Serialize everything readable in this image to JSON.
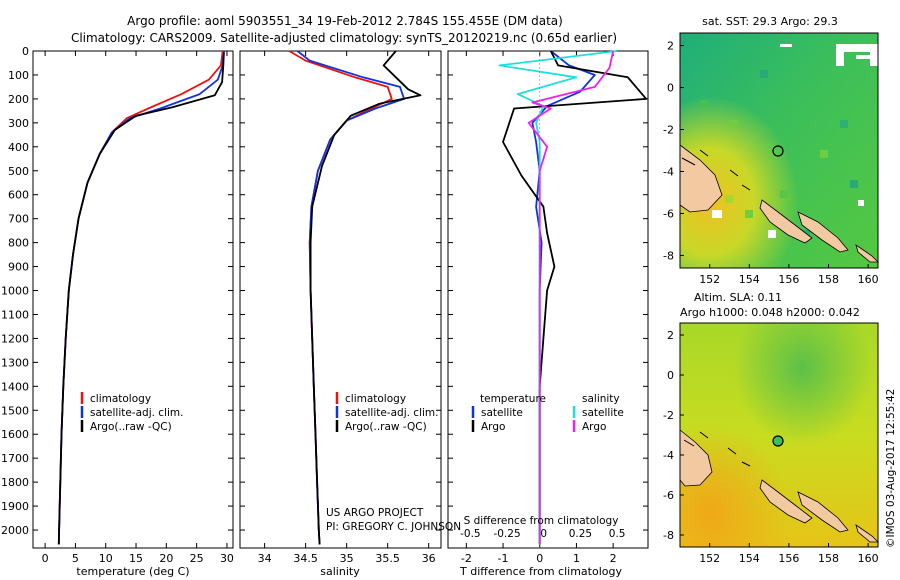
{
  "header": {
    "title_line1": "Argo profile: aoml 5903551_34 19-Feb-2012 2.784S 155.455E (DM data)",
    "title_line2": "Climatology: CARS2009. Satellite-adjusted climatology: synTS_20120219.nc (0.65d earlier)"
  },
  "credits": {
    "project": "US ARGO PROJECT",
    "pi": "PI: GREGORY C. JOHNSON",
    "stamp": "©IMOS 03-Aug-2017 12:55:42"
  },
  "colors": {
    "climatology": "#ee1111",
    "satellite": "#1133dd",
    "argo": "#000000",
    "salinity_satellite": "#22dddd",
    "salinity_argo": "#ee22ee"
  },
  "chart_data": [
    {
      "type": "line",
      "xlabel": "temperature (deg C)",
      "ylabel": "",
      "xlim": [
        -2,
        31
      ],
      "ylim": [
        2075,
        0
      ],
      "xticks": [
        "0",
        "5",
        "10",
        "15",
        "20",
        "25",
        "30"
      ],
      "xtick_values": [
        0,
        5,
        10,
        15,
        20,
        25,
        30
      ],
      "yticks": [
        "0",
        "100",
        "200",
        "300",
        "400",
        "500",
        "600",
        "700",
        "800",
        "900",
        "1000",
        "1100",
        "1200",
        "1300",
        "1400",
        "1500",
        "1600",
        "1700",
        "1800",
        "1900",
        "2000"
      ],
      "ytick_values": [
        0,
        100,
        200,
        300,
        400,
        500,
        600,
        700,
        800,
        900,
        1000,
        1100,
        1200,
        1300,
        1400,
        1500,
        1600,
        1700,
        1800,
        1900,
        2000
      ],
      "legend": [
        "climatology",
        "satellite-adj. clim.",
        "Argo(..raw -QC)"
      ],
      "legend_position": "lower-center",
      "series": [
        {
          "name": "climatology",
          "color_key": "climatology",
          "x": [
            29.3,
            29.0,
            27.0,
            22.5,
            17.0,
            13.5,
            11.0,
            9.0,
            7.0,
            5.5,
            4.6,
            3.9,
            3.4,
            3.0,
            2.7,
            2.5,
            2.3,
            2.25
          ],
          "y": [
            0,
            60,
            120,
            180,
            240,
            280,
            340,
            430,
            550,
            700,
            850,
            1000,
            1200,
            1400,
            1600,
            1800,
            2000,
            2060
          ]
        },
        {
          "name": "satellite-adj. clim.",
          "color_key": "satellite",
          "x": [
            29.5,
            29.3,
            28.5,
            25.5,
            19.0,
            14.0,
            11.0,
            9.0,
            7.0,
            5.5,
            4.6,
            3.9,
            3.4,
            3.0,
            2.7,
            2.5,
            2.3,
            2.25
          ],
          "y": [
            0,
            60,
            120,
            180,
            240,
            280,
            340,
            430,
            550,
            700,
            850,
            1000,
            1200,
            1400,
            1600,
            1800,
            2000,
            2060
          ]
        },
        {
          "name": "Argo(..raw -QC)",
          "color_key": "argo",
          "x": [
            29.5,
            29.4,
            29.2,
            28.0,
            21.0,
            15.0,
            11.5,
            9.0,
            7.0,
            5.5,
            4.6,
            3.9,
            3.4,
            3.0,
            2.7,
            2.5,
            2.3,
            2.25
          ],
          "y": [
            5,
            60,
            130,
            185,
            235,
            270,
            330,
            430,
            550,
            700,
            850,
            1000,
            1200,
            1400,
            1600,
            1800,
            2000,
            2060
          ]
        }
      ]
    },
    {
      "type": "line",
      "xlabel": "salinity",
      "xlim": [
        33.7,
        36.15
      ],
      "ylim": [
        2075,
        0
      ],
      "xticks": [
        "34",
        "34.5",
        "35",
        "35.5",
        "36"
      ],
      "xtick_values": [
        34,
        34.5,
        35,
        35.5,
        36
      ],
      "legend": [
        "climatology",
        "satellite-adj. clim.",
        "Argo(..raw -QC)"
      ],
      "legend_position": "lower-right",
      "series": [
        {
          "name": "climatology",
          "color_key": "climatology",
          "x": [
            34.3,
            34.5,
            35.1,
            35.5,
            35.55,
            35.3,
            35.0,
            34.8,
            34.65,
            34.57,
            34.55,
            34.56,
            34.58,
            34.6,
            34.62,
            34.64,
            34.66,
            34.67
          ],
          "y": [
            0,
            40,
            110,
            150,
            200,
            240,
            290,
            370,
            500,
            650,
            800,
            1000,
            1200,
            1400,
            1600,
            1800,
            2000,
            2060
          ]
        },
        {
          "name": "satellite-adj. clim.",
          "color_key": "satellite",
          "x": [
            34.4,
            34.55,
            35.2,
            35.65,
            35.7,
            35.35,
            35.0,
            34.8,
            34.65,
            34.57,
            34.55,
            34.56,
            34.58,
            34.6,
            34.62,
            34.64,
            34.66,
            34.67
          ],
          "y": [
            0,
            40,
            110,
            150,
            200,
            240,
            290,
            370,
            500,
            650,
            800,
            1000,
            1200,
            1400,
            1600,
            1800,
            2000,
            2060
          ]
        },
        {
          "name": "Argo(..raw -QC)",
          "color_key": "argo",
          "x": [
            35.6,
            35.45,
            35.6,
            35.75,
            35.9,
            35.4,
            35.05,
            34.85,
            34.7,
            34.58,
            34.56,
            34.56,
            34.58,
            34.6,
            34.62,
            34.64,
            34.66,
            34.67
          ],
          "y": [
            0,
            60,
            110,
            160,
            185,
            220,
            270,
            350,
            480,
            650,
            800,
            1000,
            1200,
            1400,
            1600,
            1800,
            2000,
            2060
          ]
        }
      ]
    },
    {
      "type": "line",
      "xlabel": "T difference from climatology",
      "xlabel2": "S difference from climatology",
      "xlim": [
        -2.5,
        2.95
      ],
      "ylim": [
        2075,
        0
      ],
      "xticks": [
        "-2",
        "-1",
        "0",
        "1",
        "2"
      ],
      "xtick_values": [
        -2,
        -1,
        0,
        1,
        2
      ],
      "xticks2": [
        "-0.5",
        "-0.25",
        "0",
        "0.25",
        "0.5"
      ],
      "xtick2_positions": [
        -2,
        -1,
        0,
        1,
        2
      ],
      "legend_titles": [
        "temperature",
        "salinity"
      ],
      "legend": [
        "satellite",
        "Argo",
        "satellite",
        "Argo"
      ],
      "legend_position": "lower-right",
      "series": [
        {
          "name": "temperature satellite",
          "color_key": "satellite",
          "x": [
            0.3,
            0.8,
            1.5,
            1.1,
            0.2,
            -0.2,
            -0.1,
            0.0,
            -0.1,
            0.05,
            0.0,
            0.0,
            0.0,
            0.0,
            0.0,
            0.0,
            0.0
          ],
          "y": [
            0,
            60,
            100,
            170,
            230,
            300,
            380,
            500,
            650,
            800,
            1000,
            1200,
            1400,
            1600,
            1800,
            2000,
            2060
          ]
        },
        {
          "name": "temperature Argo",
          "color_key": "argo",
          "x": [
            0.3,
            0.5,
            2.4,
            2.9,
            -0.7,
            -1.0,
            -0.5,
            0.1,
            0.2,
            0.4,
            0.2,
            0.1,
            0.0,
            0.0,
            0.0,
            0.0,
            0.0
          ],
          "y": [
            0,
            60,
            110,
            200,
            240,
            380,
            520,
            650,
            760,
            900,
            1000,
            1200,
            1400,
            1600,
            1800,
            2000,
            2060
          ]
        },
        {
          "name": "salinity satellite",
          "color_key": "salinity_satellite",
          "x": [
            2.1,
            -1.1,
            1.0,
            -0.6,
            0.1,
            -0.1,
            0.0,
            0.0,
            0.0,
            0.0,
            0.0,
            0.0,
            0.0,
            0.0,
            0.0,
            0.0
          ],
          "y": [
            0,
            60,
            110,
            180,
            230,
            300,
            380,
            500,
            650,
            800,
            1000,
            1200,
            1400,
            1600,
            1800,
            2060
          ]
        },
        {
          "name": "salinity Argo",
          "color_key": "salinity_argo",
          "x": [
            2.0,
            1.9,
            1.5,
            -0.2,
            0.3,
            -0.3,
            0.2,
            0.0,
            0.0,
            0.0,
            0.0,
            0.0,
            0.0,
            0.0,
            0.0,
            0.0
          ],
          "y": [
            0,
            70,
            150,
            215,
            240,
            300,
            400,
            500,
            650,
            800,
            1000,
            1200,
            1400,
            1600,
            1800,
            2060
          ]
        }
      ]
    },
    {
      "type": "heatmap",
      "title": "sat. SST: 29.3  Argo: 29.3",
      "xticks": [
        "152",
        "154",
        "156",
        "158",
        "160"
      ],
      "xtick_values": [
        152,
        154,
        156,
        158,
        160
      ],
      "yticks": [
        "2",
        "0",
        "-2",
        "-4",
        "-6",
        "-8"
      ],
      "ytick_values": [
        2,
        0,
        -2,
        -4,
        -6,
        -8
      ],
      "xlim": [
        150.5,
        160.5
      ],
      "ylim": [
        -8.6,
        2.6
      ],
      "profile_location": {
        "lon": 155.455,
        "lat": -2.784
      }
    },
    {
      "type": "heatmap",
      "title": "Altim. SLA: 0.11",
      "subtitle": "Argo h1000: 0.048  h2000: 0.042",
      "xticks": [
        "152",
        "154",
        "156",
        "158",
        "160"
      ],
      "xtick_values": [
        152,
        154,
        156,
        158,
        160
      ],
      "yticks": [
        "2",
        "0",
        "-2",
        "-4",
        "-6",
        "-8"
      ],
      "ytick_values": [
        2,
        0,
        -2,
        -4,
        -6,
        -8
      ],
      "xlim": [
        150.5,
        160.5
      ],
      "ylim": [
        -8.6,
        2.6
      ],
      "profile_location": {
        "lon": 155.455,
        "lat": -2.784
      }
    }
  ]
}
